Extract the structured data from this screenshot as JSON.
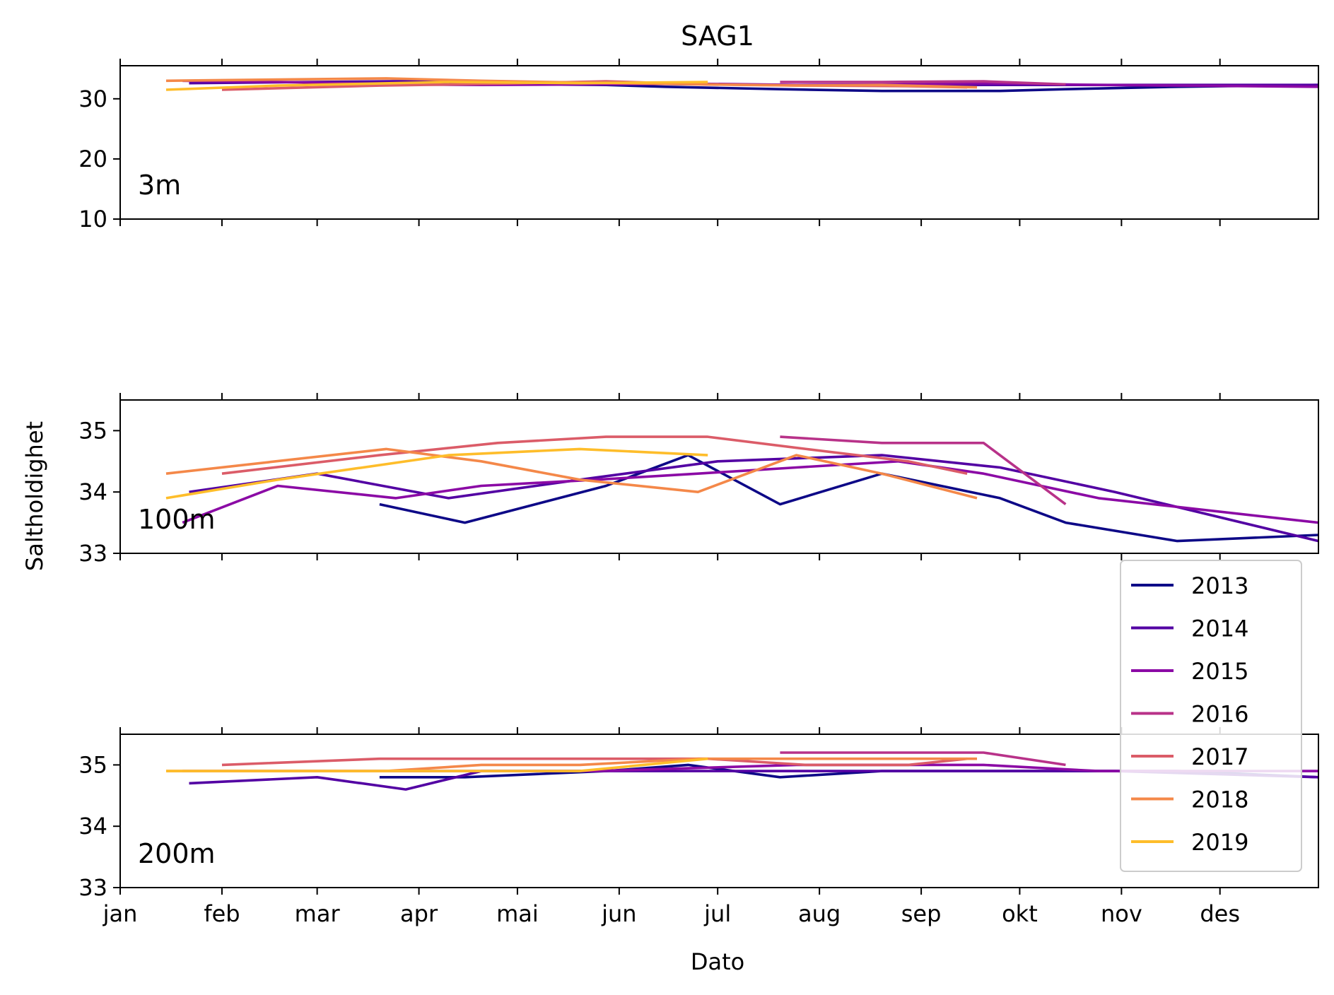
{
  "chart_data": {
    "type": "line",
    "title": "SAG1",
    "xlabel": "Dato",
    "ylabel": "Saltholdighet",
    "x_ticks": [
      "jan",
      "feb",
      "mar",
      "apr",
      "mai",
      "jun",
      "jul",
      "aug",
      "sep",
      "okt",
      "nov",
      "des"
    ],
    "xlim": [
      "2000-01-01",
      "2000-12-31"
    ],
    "legend": {
      "placement": "lower-right, spanning middle and bottom panels",
      "entries": [
        "2013",
        "2014",
        "2015",
        "2016",
        "2017",
        "2018",
        "2019"
      ]
    },
    "series_colors": {
      "2013": "#0d0887",
      "2014": "#5302a3",
      "2015": "#8b0aa5",
      "2016": "#b83289",
      "2017": "#db5c68",
      "2018": "#f48849",
      "2019": "#febd2a"
    },
    "panels": [
      {
        "label": "3m",
        "ylim": [
          10,
          35.5
        ],
        "yticks": [
          10,
          20,
          30
        ],
        "series": [
          {
            "name": "2013",
            "x": [
              "2000-03-20",
              "2000-04-15",
              "2000-05-28",
              "2000-06-15",
              "2000-07-20",
              "2000-08-20",
              "2000-09-25",
              "2000-10-15",
              "2000-11-18",
              "2000-12-31"
            ],
            "values": [
              32.6,
              32.5,
              32.3,
              32.0,
              31.6,
              31.3,
              31.3,
              31.6,
              32.0,
              32.3
            ]
          },
          {
            "name": "2014",
            "x": [
              "2000-01-22",
              "2000-03-01",
              "2000-04-10",
              "2000-05-20",
              "2000-07-01",
              "2000-08-10",
              "2000-09-20",
              "2000-10-30",
              "2000-12-31"
            ],
            "values": [
              32.6,
              32.8,
              33.0,
              32.6,
              32.4,
              32.2,
              32.3,
              32.3,
              32.3
            ]
          },
          {
            "name": "2015",
            "x": [
              "2000-01-20",
              "2000-02-18",
              "2000-03-25",
              "2000-04-20",
              "2000-05-25",
              "2000-06-25",
              "2000-07-25",
              "2000-08-25",
              "2000-09-20",
              "2000-10-25",
              "2000-12-31"
            ],
            "values": [
              33.0,
              32.8,
              32.4,
              32.3,
              32.4,
              32.5,
              32.3,
              32.4,
              32.6,
              32.3,
              32.0
            ]
          },
          {
            "name": "2016",
            "x": [
              "2000-07-20",
              "2000-08-20",
              "2000-09-20",
              "2000-10-15"
            ],
            "values": [
              32.8,
              32.8,
              32.9,
              32.4
            ]
          },
          {
            "name": "2017",
            "x": [
              "2000-02-01",
              "2000-03-20",
              "2000-04-25",
              "2000-05-28",
              "2000-06-28",
              "2000-07-28",
              "2000-08-28",
              "2000-09-15"
            ],
            "values": [
              31.5,
              32.2,
              32.5,
              32.9,
              32.4,
              32.2,
              32.1,
              31.9
            ]
          },
          {
            "name": "2018",
            "x": [
              "2000-01-15",
              "2000-03-22",
              "2000-04-20",
              "2000-05-20",
              "2000-06-25",
              "2000-07-25",
              "2000-08-20",
              "2000-09-18"
            ],
            "values": [
              33.0,
              33.4,
              33.0,
              32.7,
              32.4,
              32.2,
              32.3,
              31.9
            ]
          },
          {
            "name": "2019",
            "x": [
              "2000-01-15",
              "2000-02-18",
              "2000-04-10",
              "2000-05-20",
              "2000-06-28"
            ],
            "values": [
              31.5,
              32.2,
              32.8,
              32.6,
              32.8
            ]
          }
        ]
      },
      {
        "label": "100m",
        "ylim": [
          33,
          35.5
        ],
        "yticks": [
          33,
          34,
          35
        ],
        "series": [
          {
            "name": "2013",
            "x": [
              "2000-03-20",
              "2000-04-15",
              "2000-05-28",
              "2000-06-22",
              "2000-07-20",
              "2000-08-20",
              "2000-09-25",
              "2000-10-15",
              "2000-11-18",
              "2000-12-31"
            ],
            "values": [
              33.8,
              33.5,
              34.1,
              34.6,
              33.8,
              34.3,
              33.9,
              33.5,
              33.2,
              33.3
            ]
          },
          {
            "name": "2014",
            "x": [
              "2000-01-22",
              "2000-03-01",
              "2000-04-10",
              "2000-05-20",
              "2000-07-01",
              "2000-08-20",
              "2000-09-25",
              "2000-10-30",
              "2000-12-31"
            ],
            "values": [
              34.0,
              34.3,
              33.9,
              34.2,
              34.5,
              34.6,
              34.4,
              34.0,
              33.2
            ]
          },
          {
            "name": "2015",
            "x": [
              "2000-01-20",
              "2000-02-18",
              "2000-03-25",
              "2000-04-20",
              "2000-05-25",
              "2000-06-25",
              "2000-07-25",
              "2000-08-25",
              "2000-09-20",
              "2000-10-25",
              "2000-12-31"
            ],
            "values": [
              33.5,
              34.1,
              33.9,
              34.1,
              34.2,
              34.3,
              34.4,
              34.5,
              34.3,
              33.9,
              33.5
            ]
          },
          {
            "name": "2016",
            "x": [
              "2000-07-20",
              "2000-08-20",
              "2000-09-20",
              "2000-10-15"
            ],
            "values": [
              34.9,
              34.8,
              34.8,
              33.8
            ]
          },
          {
            "name": "2017",
            "x": [
              "2000-02-01",
              "2000-03-20",
              "2000-04-25",
              "2000-05-28",
              "2000-06-28",
              "2000-07-28",
              "2000-08-28",
              "2000-09-15"
            ],
            "values": [
              34.3,
              34.6,
              34.8,
              34.9,
              34.9,
              34.7,
              34.5,
              34.3
            ]
          },
          {
            "name": "2018",
            "x": [
              "2000-01-15",
              "2000-03-22",
              "2000-04-20",
              "2000-05-20",
              "2000-06-25",
              "2000-07-25",
              "2000-08-20",
              "2000-09-18"
            ],
            "values": [
              34.3,
              34.7,
              34.5,
              34.2,
              34.0,
              34.6,
              34.3,
              33.9
            ]
          },
          {
            "name": "2019",
            "x": [
              "2000-01-15",
              "2000-02-18",
              "2000-04-10",
              "2000-05-20",
              "2000-06-28"
            ],
            "values": [
              33.9,
              34.2,
              34.6,
              34.7,
              34.6
            ]
          }
        ]
      },
      {
        "label": "200m",
        "ylim": [
          33,
          35.5
        ],
        "yticks": [
          33,
          34,
          35
        ],
        "series": [
          {
            "name": "2013",
            "x": [
              "2000-03-20",
              "2000-04-15",
              "2000-05-28",
              "2000-06-22",
              "2000-07-20",
              "2000-08-20",
              "2000-09-25",
              "2000-10-15",
              "2000-11-18",
              "2000-12-31"
            ],
            "values": [
              34.8,
              34.8,
              34.9,
              35.0,
              34.8,
              34.9,
              34.9,
              34.9,
              34.9,
              34.8
            ]
          },
          {
            "name": "2014",
            "x": [
              "2000-01-22",
              "2000-03-01",
              "2000-03-28",
              "2000-04-20",
              "2000-05-20",
              "2000-07-01",
              "2000-08-20",
              "2000-09-25",
              "2000-10-30",
              "2000-12-31"
            ],
            "values": [
              34.7,
              34.8,
              34.6,
              34.9,
              34.9,
              34.9,
              34.9,
              34.9,
              34.9,
              34.8
            ]
          },
          {
            "name": "2015",
            "x": [
              "2000-01-20",
              "2000-03-25",
              "2000-05-25",
              "2000-07-25",
              "2000-09-20",
              "2000-10-25",
              "2000-12-31"
            ],
            "values": [
              34.9,
              34.9,
              34.9,
              35.0,
              35.0,
              34.9,
              34.9
            ]
          },
          {
            "name": "2016",
            "x": [
              "2000-07-20",
              "2000-08-20",
              "2000-09-20",
              "2000-10-15"
            ],
            "values": [
              35.2,
              35.2,
              35.2,
              35.0
            ]
          },
          {
            "name": "2017",
            "x": [
              "2000-02-01",
              "2000-03-20",
              "2000-04-25",
              "2000-05-28",
              "2000-06-28",
              "2000-07-28",
              "2000-08-28",
              "2000-09-15"
            ],
            "values": [
              35.0,
              35.1,
              35.1,
              35.1,
              35.1,
              35.0,
              35.0,
              35.1
            ]
          },
          {
            "name": "2018",
            "x": [
              "2000-01-15",
              "2000-03-22",
              "2000-04-20",
              "2000-05-20",
              "2000-06-25",
              "2000-07-25",
              "2000-08-20",
              "2000-09-18"
            ],
            "values": [
              34.9,
              34.9,
              35.0,
              35.0,
              35.1,
              35.1,
              35.1,
              35.1
            ]
          },
          {
            "name": "2019",
            "x": [
              "2000-01-15",
              "2000-02-18",
              "2000-04-10",
              "2000-05-20",
              "2000-06-28"
            ],
            "values": [
              34.9,
              34.9,
              34.9,
              34.9,
              35.1
            ]
          }
        ]
      }
    ]
  }
}
